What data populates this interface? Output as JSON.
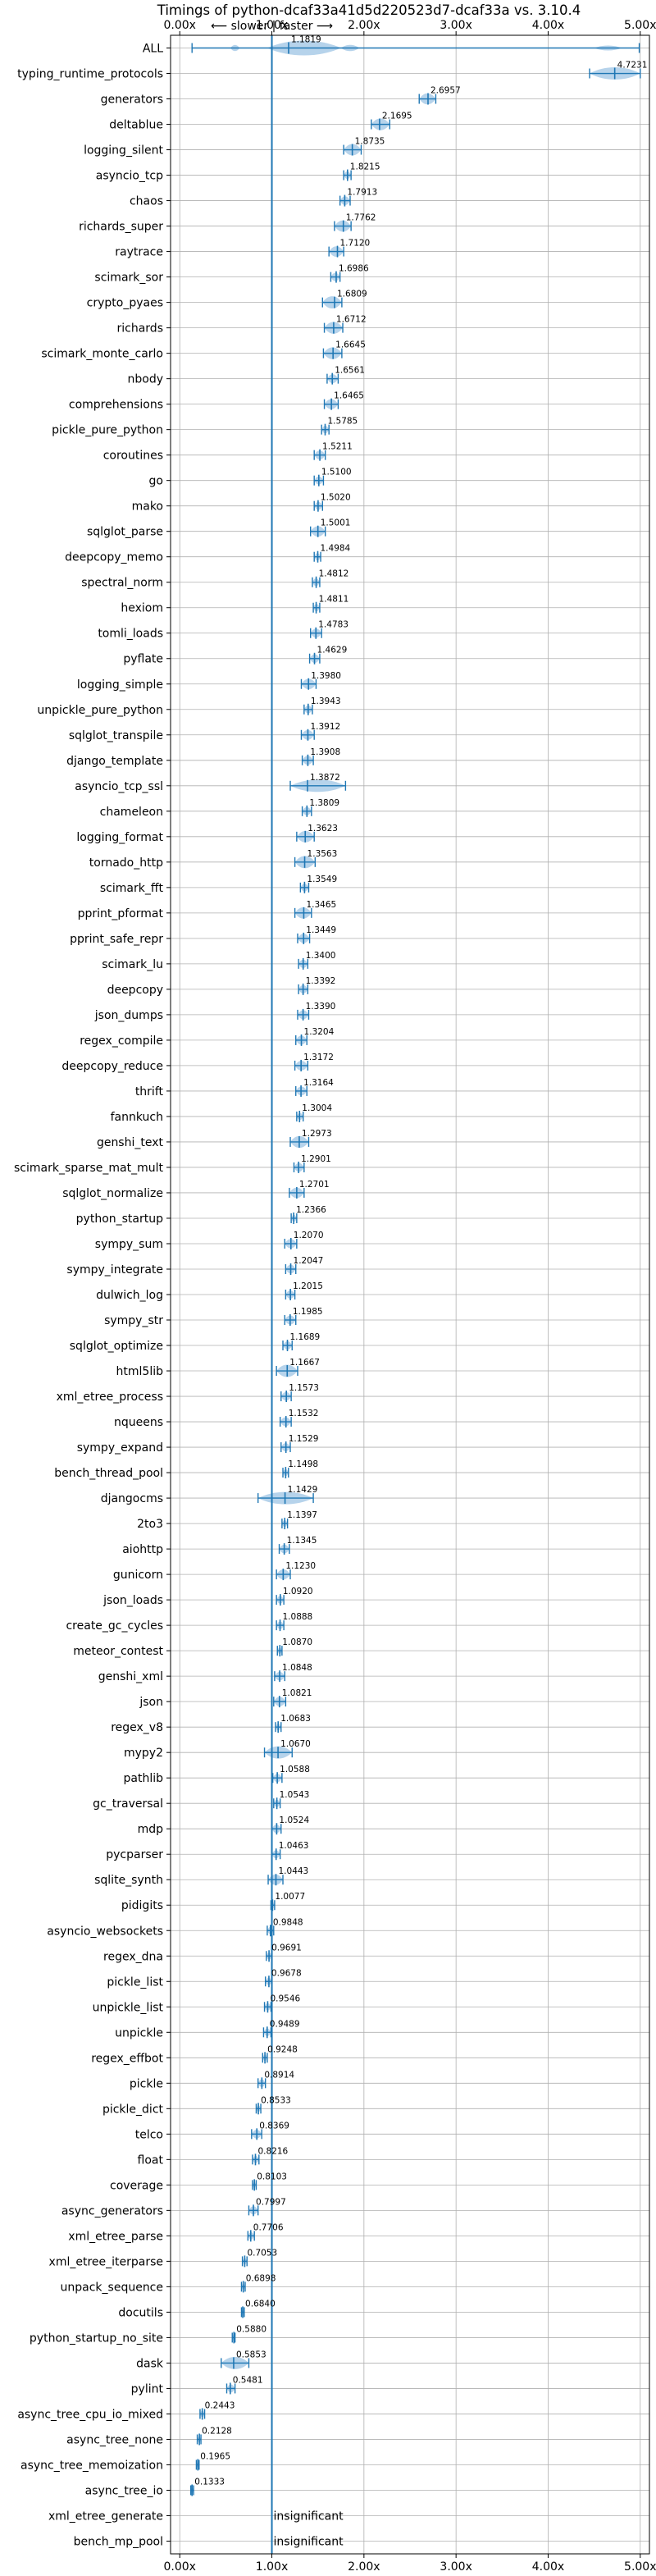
{
  "chart_data": {
    "type": "violin",
    "title": "Timings of python-dcaf33a41d5d220523d7-dcaf33a vs. 3.10.4",
    "direction_label": "⟵ slower | faster ⟶",
    "xlim": [
      -0.1,
      5.1
    ],
    "reference_x": 1.0,
    "grid": true,
    "x_ticks": [
      {
        "value": 0.0,
        "label": "0.00x"
      },
      {
        "value": 1.0,
        "label": "1.00x"
      },
      {
        "value": 2.0,
        "label": "2.00x"
      },
      {
        "value": 3.0,
        "label": "3.00x"
      },
      {
        "value": 4.0,
        "label": "4.00x"
      },
      {
        "value": 5.0,
        "label": "5.00x"
      }
    ],
    "colors": {
      "violin": "#a9cbe8",
      "median": "#1f77b4",
      "highlight": "#d62728",
      "grid": "#b0b0b0"
    },
    "benchmarks": [
      {
        "name": "ALL",
        "value": 1.1819,
        "label": "1.1819",
        "lo": 0.1333,
        "hi": 4.9893
      },
      {
        "name": "typing_runtime_protocols",
        "value": 4.7231,
        "label": "4.7231",
        "lo": 4.45,
        "hi": 5.0
      },
      {
        "name": "generators",
        "value": 2.6957,
        "label": "2.6957",
        "lo": 2.6,
        "hi": 2.78
      },
      {
        "name": "deltablue",
        "value": 2.1695,
        "label": "2.1695",
        "lo": 2.08,
        "hi": 2.28
      },
      {
        "name": "logging_silent",
        "value": 1.8735,
        "label": "1.8735",
        "lo": 1.78,
        "hi": 1.97
      },
      {
        "name": "asyncio_tcp",
        "value": 1.8215,
        "label": "1.8215",
        "lo": 1.78,
        "hi": 1.86
      },
      {
        "name": "chaos",
        "value": 1.7913,
        "label": "1.7913",
        "lo": 1.74,
        "hi": 1.85
      },
      {
        "name": "richards_super",
        "value": 1.7762,
        "label": "1.7762",
        "lo": 1.68,
        "hi": 1.86
      },
      {
        "name": "raytrace",
        "value": 1.712,
        "label": "1.7120",
        "lo": 1.62,
        "hi": 1.78
      },
      {
        "name": "scimark_sor",
        "value": 1.6986,
        "label": "1.6986",
        "lo": 1.64,
        "hi": 1.74
      },
      {
        "name": "crypto_pyaes",
        "value": 1.6809,
        "label": "1.6809",
        "lo": 1.55,
        "hi": 1.76
      },
      {
        "name": "richards",
        "value": 1.6712,
        "label": "1.6712",
        "lo": 1.57,
        "hi": 1.77
      },
      {
        "name": "scimark_monte_carlo",
        "value": 1.6645,
        "label": "1.6645",
        "lo": 1.56,
        "hi": 1.76
      },
      {
        "name": "nbody",
        "value": 1.6561,
        "label": "1.6561",
        "lo": 1.6,
        "hi": 1.72
      },
      {
        "name": "comprehensions",
        "value": 1.6465,
        "label": "1.6465",
        "lo": 1.57,
        "hi": 1.72
      },
      {
        "name": "pickle_pure_python",
        "value": 1.5785,
        "label": "1.5785",
        "lo": 1.54,
        "hi": 1.62
      },
      {
        "name": "coroutines",
        "value": 1.5211,
        "label": "1.5211",
        "lo": 1.46,
        "hi": 1.58
      },
      {
        "name": "go",
        "value": 1.51,
        "label": "1.5100",
        "lo": 1.46,
        "hi": 1.56
      },
      {
        "name": "mako",
        "value": 1.502,
        "label": "1.5020",
        "lo": 1.46,
        "hi": 1.55
      },
      {
        "name": "sqlglot_parse",
        "value": 1.5001,
        "label": "1.5001",
        "lo": 1.42,
        "hi": 1.58
      },
      {
        "name": "deepcopy_memo",
        "value": 1.4984,
        "label": "1.4984",
        "lo": 1.46,
        "hi": 1.53
      },
      {
        "name": "spectral_norm",
        "value": 1.4812,
        "label": "1.4812",
        "lo": 1.44,
        "hi": 1.52
      },
      {
        "name": "hexiom",
        "value": 1.4811,
        "label": "1.4811",
        "lo": 1.45,
        "hi": 1.52
      },
      {
        "name": "tomli_loads",
        "value": 1.4783,
        "label": "1.4783",
        "lo": 1.42,
        "hi": 1.54
      },
      {
        "name": "pyflate",
        "value": 1.4629,
        "label": "1.4629",
        "lo": 1.41,
        "hi": 1.52
      },
      {
        "name": "logging_simple",
        "value": 1.398,
        "label": "1.3980",
        "lo": 1.32,
        "hi": 1.48
      },
      {
        "name": "unpickle_pure_python",
        "value": 1.3943,
        "label": "1.3943",
        "lo": 1.35,
        "hi": 1.44
      },
      {
        "name": "sqlglot_transpile",
        "value": 1.3912,
        "label": "1.3912",
        "lo": 1.32,
        "hi": 1.46
      },
      {
        "name": "django_template",
        "value": 1.3908,
        "label": "1.3908",
        "lo": 1.33,
        "hi": 1.45
      },
      {
        "name": "asyncio_tcp_ssl",
        "value": 1.3872,
        "label": "1.3872",
        "lo": 1.2,
        "hi": 1.8
      },
      {
        "name": "chameleon",
        "value": 1.3809,
        "label": "1.3809",
        "lo": 1.33,
        "hi": 1.43
      },
      {
        "name": "logging_format",
        "value": 1.3623,
        "label": "1.3623",
        "lo": 1.27,
        "hi": 1.46
      },
      {
        "name": "tornado_http",
        "value": 1.3563,
        "label": "1.3563",
        "lo": 1.25,
        "hi": 1.47
      },
      {
        "name": "scimark_fft",
        "value": 1.3549,
        "label": "1.3549",
        "lo": 1.31,
        "hi": 1.4
      },
      {
        "name": "pprint_pformat",
        "value": 1.3465,
        "label": "1.3465",
        "lo": 1.25,
        "hi": 1.43
      },
      {
        "name": "pprint_safe_repr",
        "value": 1.3449,
        "label": "1.3449",
        "lo": 1.28,
        "hi": 1.41
      },
      {
        "name": "scimark_lu",
        "value": 1.34,
        "label": "1.3400",
        "lo": 1.29,
        "hi": 1.39
      },
      {
        "name": "deepcopy",
        "value": 1.3392,
        "label": "1.3392",
        "lo": 1.29,
        "hi": 1.39
      },
      {
        "name": "json_dumps",
        "value": 1.339,
        "label": "1.3390",
        "lo": 1.28,
        "hi": 1.4
      },
      {
        "name": "regex_compile",
        "value": 1.3204,
        "label": "1.3204",
        "lo": 1.26,
        "hi": 1.38
      },
      {
        "name": "deepcopy_reduce",
        "value": 1.3172,
        "label": "1.3172",
        "lo": 1.25,
        "hi": 1.39
      },
      {
        "name": "thrift",
        "value": 1.3164,
        "label": "1.3164",
        "lo": 1.26,
        "hi": 1.38
      },
      {
        "name": "fannkuch",
        "value": 1.3004,
        "label": "1.3004",
        "lo": 1.27,
        "hi": 1.34
      },
      {
        "name": "genshi_text",
        "value": 1.2973,
        "label": "1.2973",
        "lo": 1.2,
        "hi": 1.4
      },
      {
        "name": "scimark_sparse_mat_mult",
        "value": 1.2901,
        "label": "1.2901",
        "lo": 1.24,
        "hi": 1.35
      },
      {
        "name": "sqlglot_normalize",
        "value": 1.2701,
        "label": "1.2701",
        "lo": 1.19,
        "hi": 1.35
      },
      {
        "name": "python_startup",
        "value": 1.2366,
        "label": "1.2366",
        "lo": 1.21,
        "hi": 1.27
      },
      {
        "name": "sympy_sum",
        "value": 1.207,
        "label": "1.2070",
        "lo": 1.14,
        "hi": 1.27
      },
      {
        "name": "sympy_integrate",
        "value": 1.2047,
        "label": "1.2047",
        "lo": 1.15,
        "hi": 1.26
      },
      {
        "name": "dulwich_log",
        "value": 1.2015,
        "label": "1.2015",
        "lo": 1.15,
        "hi": 1.25
      },
      {
        "name": "sympy_str",
        "value": 1.1985,
        "label": "1.1985",
        "lo": 1.14,
        "hi": 1.26
      },
      {
        "name": "sqlglot_optimize",
        "value": 1.1689,
        "label": "1.1689",
        "lo": 1.12,
        "hi": 1.22
      },
      {
        "name": "html5lib",
        "value": 1.1667,
        "label": "1.1667",
        "lo": 1.05,
        "hi": 1.28
      },
      {
        "name": "xml_etree_process",
        "value": 1.1573,
        "label": "1.1573",
        "lo": 1.1,
        "hi": 1.21
      },
      {
        "name": "nqueens",
        "value": 1.1532,
        "label": "1.1532",
        "lo": 1.09,
        "hi": 1.21
      },
      {
        "name": "sympy_expand",
        "value": 1.1529,
        "label": "1.1529",
        "lo": 1.1,
        "hi": 1.2
      },
      {
        "name": "bench_thread_pool",
        "value": 1.1498,
        "label": "1.1498",
        "lo": 1.12,
        "hi": 1.18
      },
      {
        "name": "djangocms",
        "value": 1.1429,
        "label": "1.1429",
        "lo": 0.85,
        "hi": 1.45
      },
      {
        "name": "2to3",
        "value": 1.1397,
        "label": "1.1397",
        "lo": 1.11,
        "hi": 1.17
      },
      {
        "name": "aiohttp",
        "value": 1.1345,
        "label": "1.1345",
        "lo": 1.08,
        "hi": 1.19
      },
      {
        "name": "gunicorn",
        "value": 1.123,
        "label": "1.1230",
        "lo": 1.05,
        "hi": 1.2
      },
      {
        "name": "json_loads",
        "value": 1.092,
        "label": "1.0920",
        "lo": 1.05,
        "hi": 1.13
      },
      {
        "name": "create_gc_cycles",
        "value": 1.0888,
        "label": "1.0888",
        "lo": 1.05,
        "hi": 1.13
      },
      {
        "name": "meteor_contest",
        "value": 1.087,
        "label": "1.0870",
        "lo": 1.06,
        "hi": 1.11
      },
      {
        "name": "genshi_xml",
        "value": 1.0848,
        "label": "1.0848",
        "lo": 1.03,
        "hi": 1.14
      },
      {
        "name": "json",
        "value": 1.0821,
        "label": "1.0821",
        "lo": 1.02,
        "hi": 1.15
      },
      {
        "name": "regex_v8",
        "value": 1.0683,
        "label": "1.0683",
        "lo": 1.04,
        "hi": 1.1
      },
      {
        "name": "mypy2",
        "value": 1.067,
        "label": "1.0670",
        "lo": 0.92,
        "hi": 1.22
      },
      {
        "name": "pathlib",
        "value": 1.0588,
        "label": "1.0588",
        "lo": 1.01,
        "hi": 1.11
      },
      {
        "name": "gc_traversal",
        "value": 1.0543,
        "label": "1.0543",
        "lo": 1.02,
        "hi": 1.09
      },
      {
        "name": "mdp",
        "value": 1.0524,
        "label": "1.0524",
        "lo": 1.0,
        "hi": 1.1
      },
      {
        "name": "pycparser",
        "value": 1.0463,
        "label": "1.0463",
        "lo": 1.0,
        "hi": 1.09
      },
      {
        "name": "sqlite_synth",
        "value": 1.0443,
        "label": "1.0443",
        "lo": 0.96,
        "hi": 1.12
      },
      {
        "name": "pidigits",
        "value": 1.0077,
        "label": "1.0077",
        "lo": 0.99,
        "hi": 1.03
      },
      {
        "name": "asyncio_websockets",
        "value": 0.9848,
        "label": "0.9848",
        "lo": 0.95,
        "hi": 1.02
      },
      {
        "name": "regex_dna",
        "value": 0.9691,
        "label": "0.9691",
        "lo": 0.94,
        "hi": 1.0
      },
      {
        "name": "pickle_list",
        "value": 0.9678,
        "label": "0.9678",
        "lo": 0.93,
        "hi": 1.0
      },
      {
        "name": "unpickle_list",
        "value": 0.9546,
        "label": "0.9546",
        "lo": 0.92,
        "hi": 0.99
      },
      {
        "name": "unpickle",
        "value": 0.9489,
        "label": "0.9489",
        "lo": 0.91,
        "hi": 0.99
      },
      {
        "name": "regex_effbot",
        "value": 0.9248,
        "label": "0.9248",
        "lo": 0.9,
        "hi": 0.95
      },
      {
        "name": "pickle",
        "value": 0.8914,
        "label": "0.8914",
        "lo": 0.85,
        "hi": 0.93
      },
      {
        "name": "pickle_dict",
        "value": 0.8533,
        "label": "0.8533",
        "lo": 0.83,
        "hi": 0.88
      },
      {
        "name": "telco",
        "value": 0.8369,
        "label": "0.8369",
        "lo": 0.78,
        "hi": 0.89
      },
      {
        "name": "float",
        "value": 0.8216,
        "label": "0.8216",
        "lo": 0.79,
        "hi": 0.86
      },
      {
        "name": "coverage",
        "value": 0.8103,
        "label": "0.8103",
        "lo": 0.79,
        "hi": 0.83
      },
      {
        "name": "async_generators",
        "value": 0.7997,
        "label": "0.7997",
        "lo": 0.75,
        "hi": 0.85
      },
      {
        "name": "xml_etree_parse",
        "value": 0.7706,
        "label": "0.7706",
        "lo": 0.74,
        "hi": 0.81
      },
      {
        "name": "xml_etree_iterparse",
        "value": 0.7053,
        "label": "0.7053",
        "lo": 0.68,
        "hi": 0.73
      },
      {
        "name": "unpack_sequence",
        "value": 0.6898,
        "label": "0.6898",
        "lo": 0.67,
        "hi": 0.71
      },
      {
        "name": "docutils",
        "value": 0.684,
        "label": "0.6840",
        "lo": 0.67,
        "hi": 0.7
      },
      {
        "name": "python_startup_no_site",
        "value": 0.588,
        "label": "0.5880",
        "lo": 0.57,
        "hi": 0.6
      },
      {
        "name": "dask",
        "value": 0.5853,
        "label": "0.5853",
        "lo": 0.45,
        "hi": 0.75
      },
      {
        "name": "pylint",
        "value": 0.5481,
        "label": "0.5481",
        "lo": 0.51,
        "hi": 0.6
      },
      {
        "name": "async_tree_cpu_io_mixed",
        "value": 0.2443,
        "label": "0.2443",
        "lo": 0.22,
        "hi": 0.27
      },
      {
        "name": "async_tree_none",
        "value": 0.2128,
        "label": "0.2128",
        "lo": 0.19,
        "hi": 0.23
      },
      {
        "name": "async_tree_memoization",
        "value": 0.1965,
        "label": "0.1965",
        "lo": 0.18,
        "hi": 0.21
      },
      {
        "name": "async_tree_io",
        "value": 0.1333,
        "label": "0.1333",
        "lo": 0.12,
        "hi": 0.15
      },
      {
        "name": "xml_etree_generate",
        "value": null,
        "label": "insignificant"
      },
      {
        "name": "bench_mp_pool",
        "value": null,
        "label": "insignificant"
      }
    ]
  }
}
